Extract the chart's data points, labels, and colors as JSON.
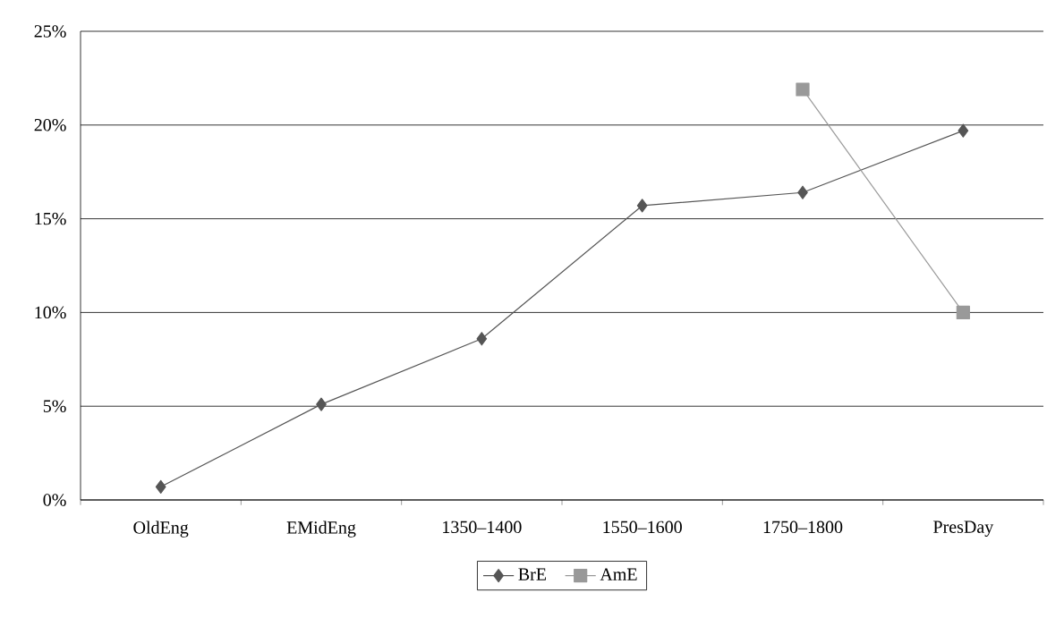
{
  "chart_data": {
    "type": "line",
    "categories": [
      "OldEng",
      "EMidEng",
      "1350–1400",
      "1550–1600",
      "1750–1800",
      "PresDay"
    ],
    "series": [
      {
        "name": "BrE",
        "color": "#555555",
        "marker": "diamond",
        "values": [
          0.7,
          5.1,
          8.6,
          15.7,
          16.4,
          19.7
        ]
      },
      {
        "name": "AmE",
        "color": "#999999",
        "marker": "square",
        "values": [
          null,
          null,
          null,
          null,
          21.9,
          10.0
        ]
      }
    ],
    "ylim": [
      0,
      25
    ],
    "yticks": [
      {
        "value": 0,
        "label": "0%"
      },
      {
        "value": 5,
        "label": "5%"
      },
      {
        "value": 10,
        "label": "10%"
      },
      {
        "value": 15,
        "label": "15%"
      },
      {
        "value": 20,
        "label": "20%"
      },
      {
        "value": 25,
        "label": "25%"
      }
    ],
    "grid": "y",
    "legend": "bottom",
    "line_style": "solid"
  }
}
